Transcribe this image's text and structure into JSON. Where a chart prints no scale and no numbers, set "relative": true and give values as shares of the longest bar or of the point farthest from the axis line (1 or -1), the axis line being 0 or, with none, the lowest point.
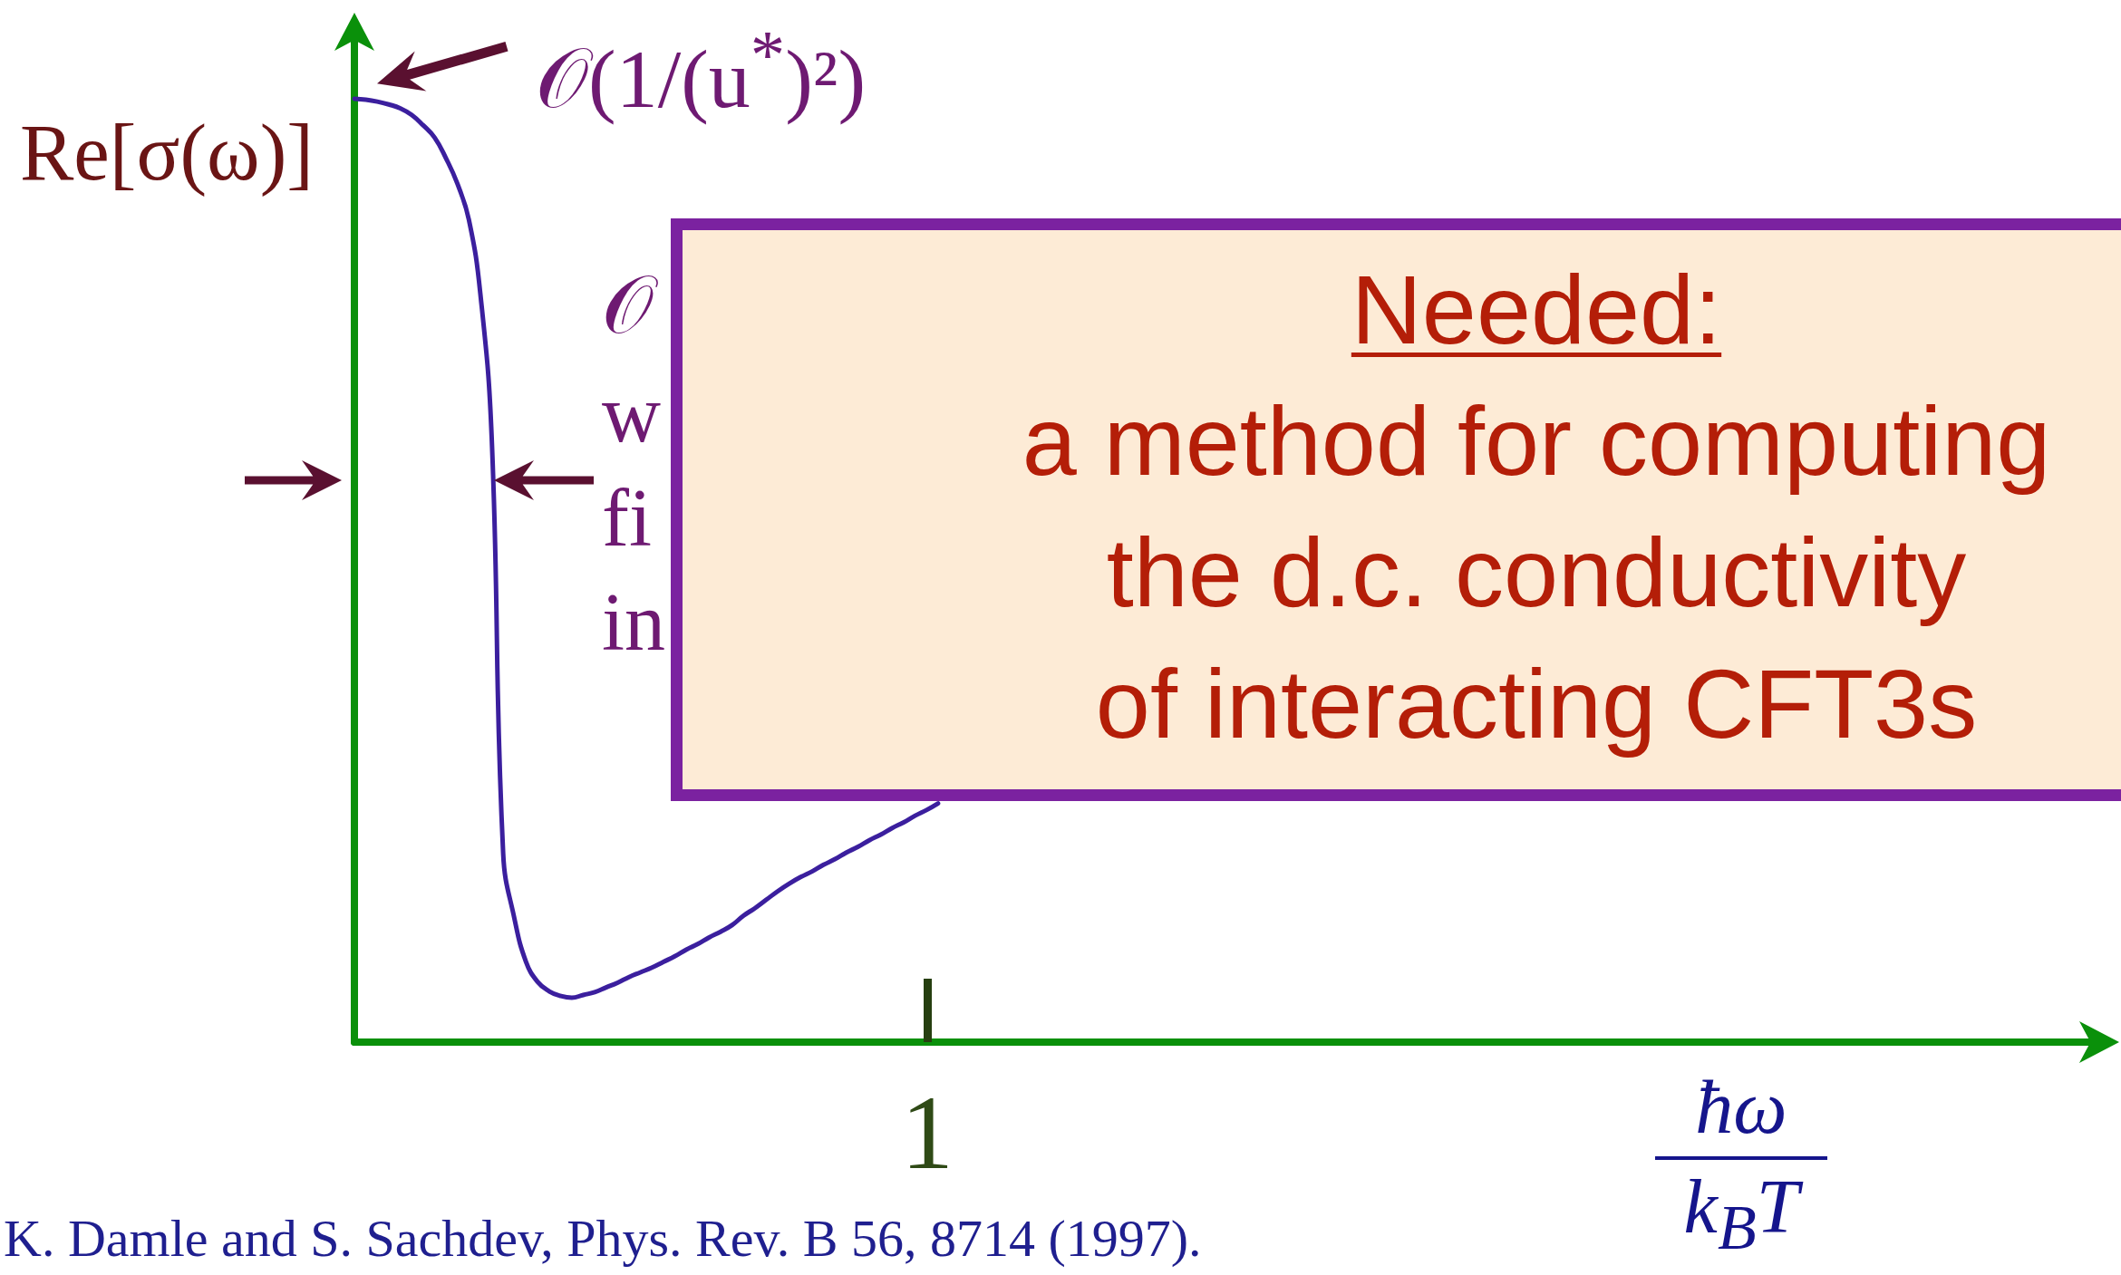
{
  "chart_data": {
    "type": "line",
    "relative": true,
    "xlabel": "ħω\nk$_{B}$T",
    "ylabel": "Re[σ(ω)]",
    "categories": [
      null,
      null,
      null,
      null,
      null,
      null,
      null,
      null,
      null,
      null,
      null,
      null,
      null,
      null,
      null,
      null,
      null,
      null,
      null,
      null,
      null,
      null,
      null,
      null,
      null,
      null,
      null,
      null,
      null,
      null,
      null,
      null,
      null,
      null,
      null,
      null,
      null,
      null,
      null,
      null,
      null,
      null,
      null,
      null,
      null,
      null,
      null,
      null,
      null,
      null,
      null,
      null,
      null,
      null,
      null,
      null,
      null,
      null,
      null,
      null,
      null,
      null,
      null,
      null,
      null,
      null,
      null,
      null,
      null,
      null,
      null,
      null,
      null,
      null,
      null,
      null,
      null,
      null,
      null,
      null,
      null,
      null,
      null,
      null,
      null,
      null,
      null,
      null,
      null,
      null,
      null,
      null,
      null,
      null,
      null,
      null,
      null,
      null,
      null,
      null,
      null,
      null,
      null,
      null,
      null,
      null,
      null,
      null,
      null,
      null,
      null,
      null,
      null,
      null,
      null,
      null,
      null,
      null,
      null,
      null,
      null,
      null,
      null,
      null,
      null,
      null,
      null,
      null,
      null,
      null,
      null,
      null,
      null,
      null,
      null,
      null,
      null,
      null,
      null,
      null,
      null,
      null,
      null,
      null,
      null,
      null,
      null,
      null,
      null,
      null,
      null,
      null,
      null
    ],
    "series": [
      {
        "color": "#3b1f9e",
        "values": [
          1,
          0.999,
          0.997,
          0.994,
          0.99,
          0.983,
          0.972,
          0.959,
          0.937,
          0.91,
          0.872,
          0.794,
          0.64,
          0.2,
          0.13,
          0.085,
          0.064,
          0.054,
          0.049,
          0.047,
          0.05,
          0.053,
          0.058,
          0.063,
          0.069,
          0.074,
          0.079,
          0.085,
          0.091,
          0.098,
          0.104,
          0.111,
          0.117,
          0.124,
          0.134,
          0.142,
          0.151,
          0.16,
          0.168,
          0.175,
          0.181,
          0.188,
          0.194,
          0.201,
          0.207,
          0.214,
          0.22,
          0.227,
          0.233,
          0.24,
          0.246,
          0.253,
          null,
          null,
          null,
          null,
          null,
          null,
          null,
          null,
          null,
          null,
          null,
          null,
          null,
          null,
          null,
          null,
          null,
          null,
          null,
          null,
          null,
          null,
          null,
          null,
          null,
          null,
          null,
          null,
          null,
          null,
          null,
          null,
          null,
          null,
          null,
          null,
          null,
          null,
          null,
          null,
          null,
          null,
          null,
          null,
          null,
          null,
          null,
          null,
          null,
          null,
          null,
          null,
          null,
          null,
          null,
          null,
          null,
          null,
          null,
          null,
          null,
          null,
          null,
          null,
          null,
          null,
          null,
          null,
          null,
          null,
          null,
          null,
          null,
          null,
          null,
          null,
          null,
          null,
          null,
          null,
          null,
          null,
          null,
          null,
          null,
          null,
          null,
          null,
          null,
          null,
          null,
          null,
          null,
          null,
          null,
          null,
          null,
          null,
          null,
          null,
          null
        ]
      }
    ],
    "marker": "none",
    "line_style": "solid",
    "annotations": [
      "𝒪(1/(u$^{*}$)²)",
      "1",
      "𝒪",
      "w",
      "fi",
      "in",
      "Needed:\na method for computing\nthe d.c. conductivity\nof interacting CFT3s",
      "K. Damle and S. Sachdev, Phys. Rev. B 56, 8714 (1997)."
    ]
  }
}
